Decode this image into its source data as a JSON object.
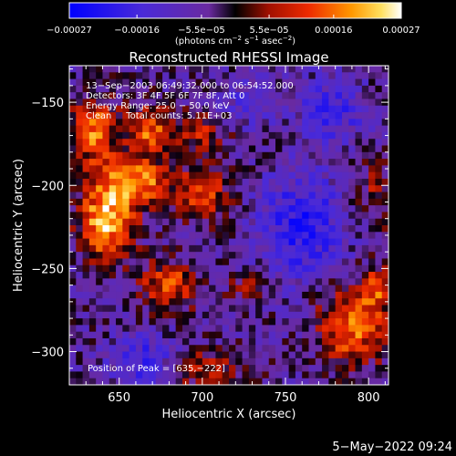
{
  "chart_data": {
    "type": "heatmap",
    "title": "Reconstructed RHESSI Image",
    "xlabel": "Heliocentric X (arcsec)",
    "ylabel": "Heliocentric Y (arcsec)",
    "xlim": [
      620,
      812
    ],
    "ylim": [
      -320,
      -128
    ],
    "x_ticks": [
      650,
      700,
      750,
      800
    ],
    "x_tick_labels": [
      "650",
      "700",
      "750",
      "800"
    ],
    "y_ticks": [
      -300,
      -250,
      -200,
      -150
    ],
    "y_tick_labels": [
      "−300",
      "−250",
      "−200",
      "−150"
    ],
    "colorbar": {
      "range": [
        -0.00027,
        0.00027
      ],
      "tick_values": [
        -0.00027,
        -0.00016,
        -5.5e-05,
        5.5e-05,
        0.00016,
        0.00027
      ],
      "tick_labels": [
        "−0.00027",
        "−0.00016",
        "−5.5e−05",
        "5.5e−05",
        "0.00016",
        "0.00027"
      ],
      "units_prefix": "(photons cm",
      "units_exp1": "−2",
      "units_mid1": " s",
      "units_exp2": "−1",
      "units_mid2": " asec",
      "units_exp3": "−2",
      "units_suffix": ")"
    },
    "annotations": [
      "13−Sep−2003 06:49:32.000 to 06:54:52.000",
      "Detectors: 3F 4F 5F 6F 7F 8F, Att 0",
      "Energy Range: 25.0 − 50.0 keV",
      "Clean     Total counts: 5.11E+03"
    ],
    "peak_label": "Position of Peak = [635,−222]",
    "peak": [
      635,
      -222
    ],
    "sources": [
      {
        "x": 642,
        "y": -222,
        "sx": 11,
        "sy": 16,
        "amp": 1.0
      },
      {
        "x": 660,
        "y": -198,
        "sx": 14,
        "sy": 10,
        "amp": 0.85
      },
      {
        "x": 634,
        "y": -168,
        "sx": 10,
        "sy": 14,
        "amp": 0.75
      },
      {
        "x": 668,
        "y": -168,
        "sx": 10,
        "sy": 10,
        "amp": 0.7
      },
      {
        "x": 700,
        "y": -205,
        "sx": 12,
        "sy": 12,
        "amp": 0.55
      },
      {
        "x": 700,
        "y": -168,
        "sx": 10,
        "sy": 8,
        "amp": 0.45
      },
      {
        "x": 680,
        "y": -260,
        "sx": 12,
        "sy": 10,
        "amp": 0.65
      },
      {
        "x": 700,
        "y": -310,
        "sx": 16,
        "sy": 8,
        "amp": 0.45
      },
      {
        "x": 790,
        "y": -285,
        "sx": 14,
        "sy": 16,
        "amp": 0.75
      },
      {
        "x": 805,
        "y": -262,
        "sx": 8,
        "sy": 10,
        "amp": 0.5
      },
      {
        "x": 805,
        "y": -205,
        "sx": 8,
        "sy": 14,
        "amp": 0.35
      },
      {
        "x": 728,
        "y": -262,
        "sx": 8,
        "sy": 8,
        "amp": 0.3
      }
    ],
    "negatives": [
      {
        "x": 760,
        "y": -225,
        "sx": 18,
        "sy": 22,
        "amp": 0.6
      },
      {
        "x": 665,
        "y": -305,
        "sx": 14,
        "sy": 10,
        "amp": 0.5
      },
      {
        "x": 778,
        "y": -155,
        "sx": 14,
        "sy": 14,
        "amp": 0.45
      },
      {
        "x": 728,
        "y": -150,
        "sx": 12,
        "sy": 10,
        "amp": 0.3
      }
    ]
  },
  "timestamp": "5−May−2022 09:24"
}
